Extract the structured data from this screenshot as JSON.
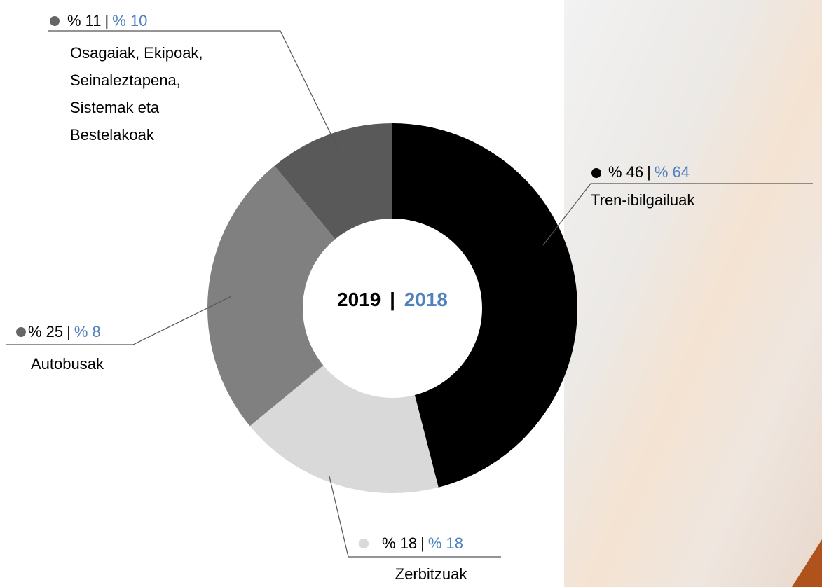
{
  "chart_data": {
    "type": "donut",
    "categories": [
      "Tren-ibilgailuak",
      "Zerbitzuak",
      "Autobusak",
      "Osagaiak, Ekipoak, Seinaleztapena, Sistemak eta Bestelakoak"
    ],
    "colors": [
      "#000000",
      "#d9d9d9",
      "#808080",
      "#595959"
    ],
    "separator": "|",
    "series": [
      {
        "name": "2019",
        "color": "#000000",
        "values": [
          46,
          18,
          25,
          11
        ],
        "value_labels": [
          "% 46",
          "% 18",
          "% 25",
          "% 11"
        ]
      },
      {
        "name": "2018",
        "color": "#4f81bd",
        "values": [
          64,
          18,
          8,
          10
        ],
        "value_labels": [
          "% 64",
          "% 18",
          "% 8",
          "% 10"
        ]
      }
    ]
  }
}
